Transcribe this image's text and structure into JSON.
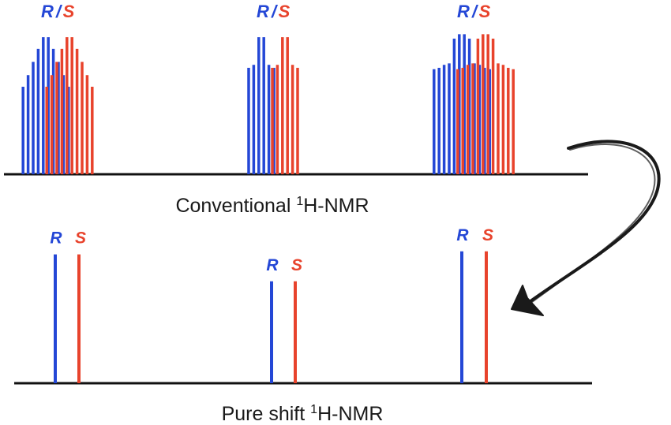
{
  "colors": {
    "r": "#2447d6",
    "s": "#e8432c",
    "axis": "#111111",
    "arrow": "#1a1a1a"
  },
  "labels": {
    "r": "R",
    "s": "S",
    "slash": "/"
  },
  "conventional": {
    "caption_prefix": "Conventional ",
    "caption_sup": "1",
    "caption_suffix": "H-NMR",
    "multiplets": [
      {
        "r": [
          0.6,
          0.68,
          0.77,
          0.86,
          0.94,
          0.94,
          0.86,
          0.77,
          0.68,
          0.6
        ],
        "s": [
          0.6,
          0.68,
          0.77,
          0.86,
          0.94,
          0.94,
          0.86,
          0.77,
          0.68,
          0.6
        ]
      },
      {
        "r": [
          0.73,
          0.75,
          0.94,
          0.94,
          0.75,
          0.73
        ],
        "s": [
          0.73,
          0.75,
          0.94,
          0.94,
          0.75,
          0.73
        ]
      },
      {
        "r": [
          0.72,
          0.73,
          0.75,
          0.76,
          0.93,
          0.96,
          0.96,
          0.93,
          0.76,
          0.75,
          0.73,
          0.72
        ],
        "s": [
          0.72,
          0.73,
          0.75,
          0.76,
          0.93,
          0.96,
          0.96,
          0.93,
          0.76,
          0.75,
          0.73,
          0.72
        ]
      }
    ]
  },
  "pure_shift": {
    "caption_prefix": "Pure shift ",
    "caption_sup": "1",
    "caption_suffix": "H-NMR",
    "singlets": [
      {
        "r": 0.86,
        "s": 0.86
      },
      {
        "r": 0.68,
        "s": 0.68
      },
      {
        "r": 0.88,
        "s": 0.88
      }
    ]
  }
}
